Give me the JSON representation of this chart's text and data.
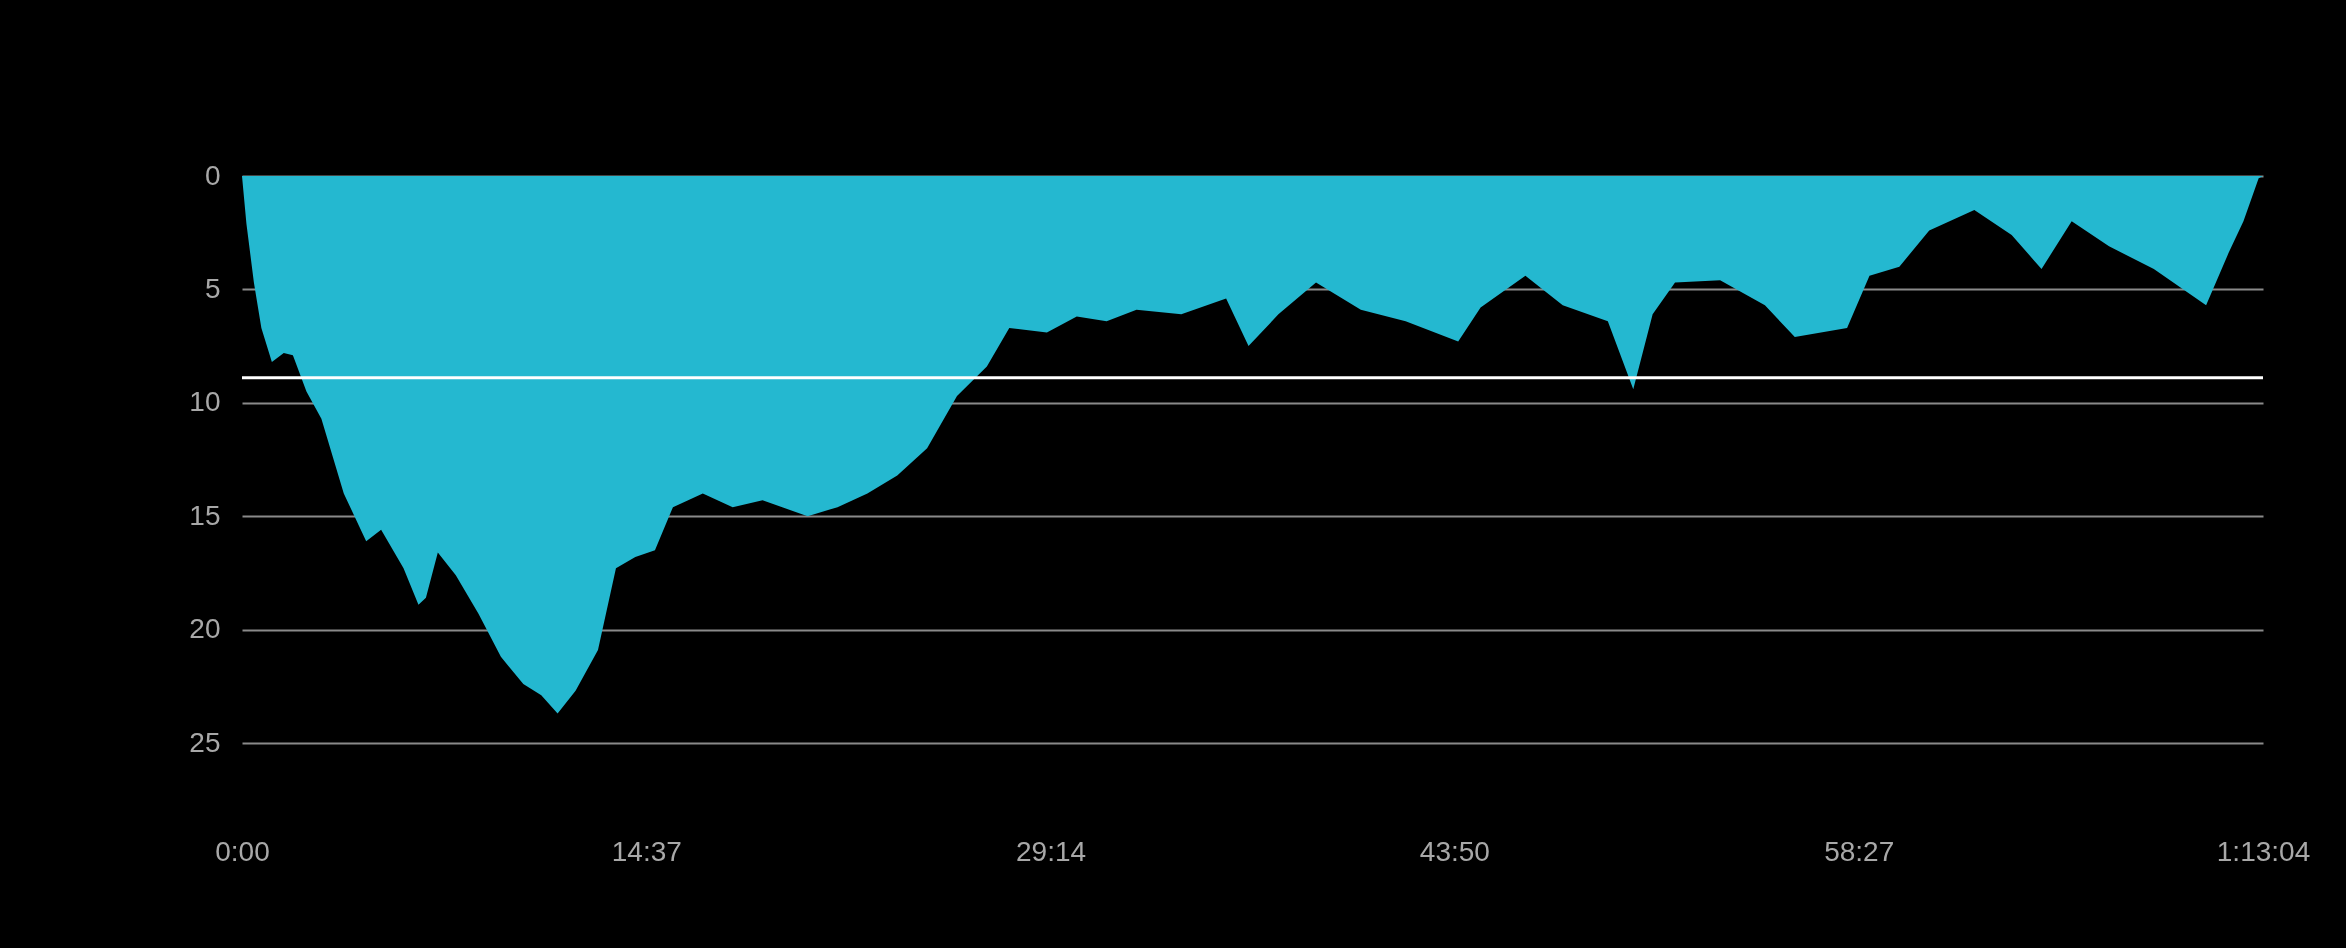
{
  "chart_data": {
    "type": "area",
    "x": [
      0,
      0.16,
      0.43,
      0.7,
      1.08,
      1.51,
      1.84,
      2.33,
      2.87,
      3.68,
      4.49,
      5.03,
      5.84,
      6.38,
      6.65,
      7.08,
      7.73,
      8.55,
      9.36,
      10.17,
      10.82,
      11.41,
      12.06,
      12.87,
      13.52,
      14.22,
      14.93,
      15.58,
      16.66,
      17.74,
      18.82,
      20.45,
      21.53,
      22.61,
      23.69,
      24.77,
      25.85,
      26.93,
      27.74,
      29.1,
      30.18,
      31.26,
      32.34,
      33.96,
      35.58,
      36.39,
      37.47,
      38.83,
      40.45,
      42.07,
      43.97,
      44.78,
      46.4,
      47.75,
      49.38,
      50.3,
      51,
      51.81,
      53.44,
      55.06,
      56.14,
      58.03,
      58.84,
      59.92,
      61,
      62.63,
      63.98,
      65.06,
      66.15,
      67.5,
      69.12,
      71.01,
      71.82,
      72.36,
      72.91,
      73.067
    ],
    "series": [
      {
        "color": "#24b8d0",
        "values": [
          0,
          2.1,
          4.7,
          6.7,
          8.2,
          7.8,
          7.9,
          9.5,
          10.7,
          14,
          16.1,
          15.6,
          17.3,
          18.9,
          18.6,
          16.6,
          17.6,
          19.3,
          21.2,
          22.4,
          22.9,
          23.7,
          22.7,
          20.9,
          17.3,
          16.8,
          16.5,
          14.6,
          14,
          14.6,
          14.3,
          15,
          14.6,
          14,
          13.2,
          12,
          9.7,
          8.4,
          6.7,
          6.9,
          6.2,
          6.4,
          5.9,
          6.1,
          5.4,
          7.5,
          6.1,
          4.7,
          5.9,
          6.4,
          7.3,
          5.8,
          4.4,
          5.7,
          6.4,
          9.4,
          6.1,
          4.7,
          4.6,
          5.7,
          7.1,
          6.7,
          4.4,
          4,
          2.4,
          1.5,
          2.6,
          4.1,
          2,
          3.1,
          4.1,
          5.7,
          3.4,
          2,
          0.1,
          0
        ]
      }
    ],
    "xlim": [
      0,
      73.067
    ],
    "xticks": [
      {
        "value": 0,
        "label": "0:00"
      },
      {
        "value": 14.617,
        "label": "14:37"
      },
      {
        "value": 29.233,
        "label": "29:14"
      },
      {
        "value": 43.833,
        "label": "43:50"
      },
      {
        "value": 58.45,
        "label": "58:27"
      },
      {
        "value": 73.067,
        "label": "1:13:04"
      }
    ],
    "ylim": [
      25,
      0
    ],
    "yticks": [
      0,
      5,
      10,
      15,
      20,
      25
    ],
    "grid": "y",
    "ref_lines": [
      {
        "axis": "y",
        "value": 8.9,
        "color": "#ffffff"
      }
    ]
  }
}
